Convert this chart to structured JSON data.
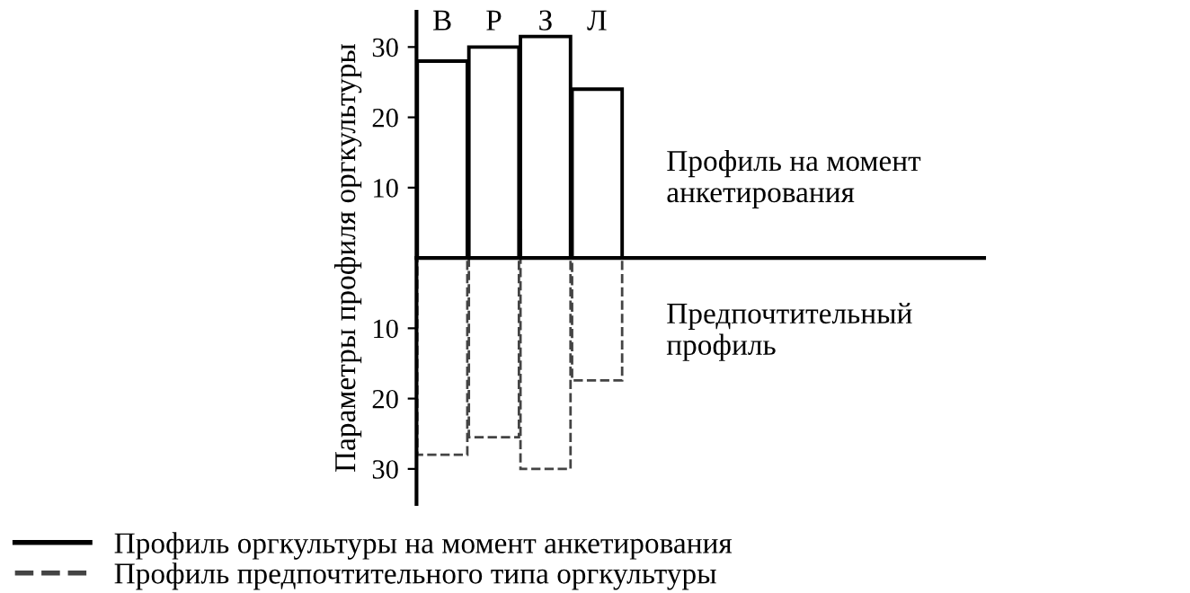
{
  "chart_data": {
    "type": "bar",
    "ylabel": "Параметры профиля оргкультуры",
    "categories": [
      "В",
      "Р",
      "З",
      "Л"
    ],
    "series": [
      {
        "name": "Профиль оргкультуры на момент анкетирования",
        "color": "#000000",
        "line_style": "solid",
        "values": [
          28,
          30,
          31.5,
          24
        ]
      },
      {
        "name": "Профиль предпочтительного типа оргкультуры",
        "color": "#444444",
        "line_style": "dashed",
        "values": [
          -28,
          -25.5,
          -30,
          -17.4
        ]
      }
    ],
    "annotations": [
      "Профиль на момент\nанкетирования",
      "Предпочтительный\nпрофиль"
    ],
    "ylim": [
      -35,
      35
    ],
    "yticks": [
      {
        "value": -30,
        "label": "30"
      },
      {
        "value": -20,
        "label": "20"
      },
      {
        "value": -10,
        "label": "10"
      },
      10,
      20,
      30
    ],
    "stacked": true,
    "grid": false,
    "legend": "bottom"
  }
}
